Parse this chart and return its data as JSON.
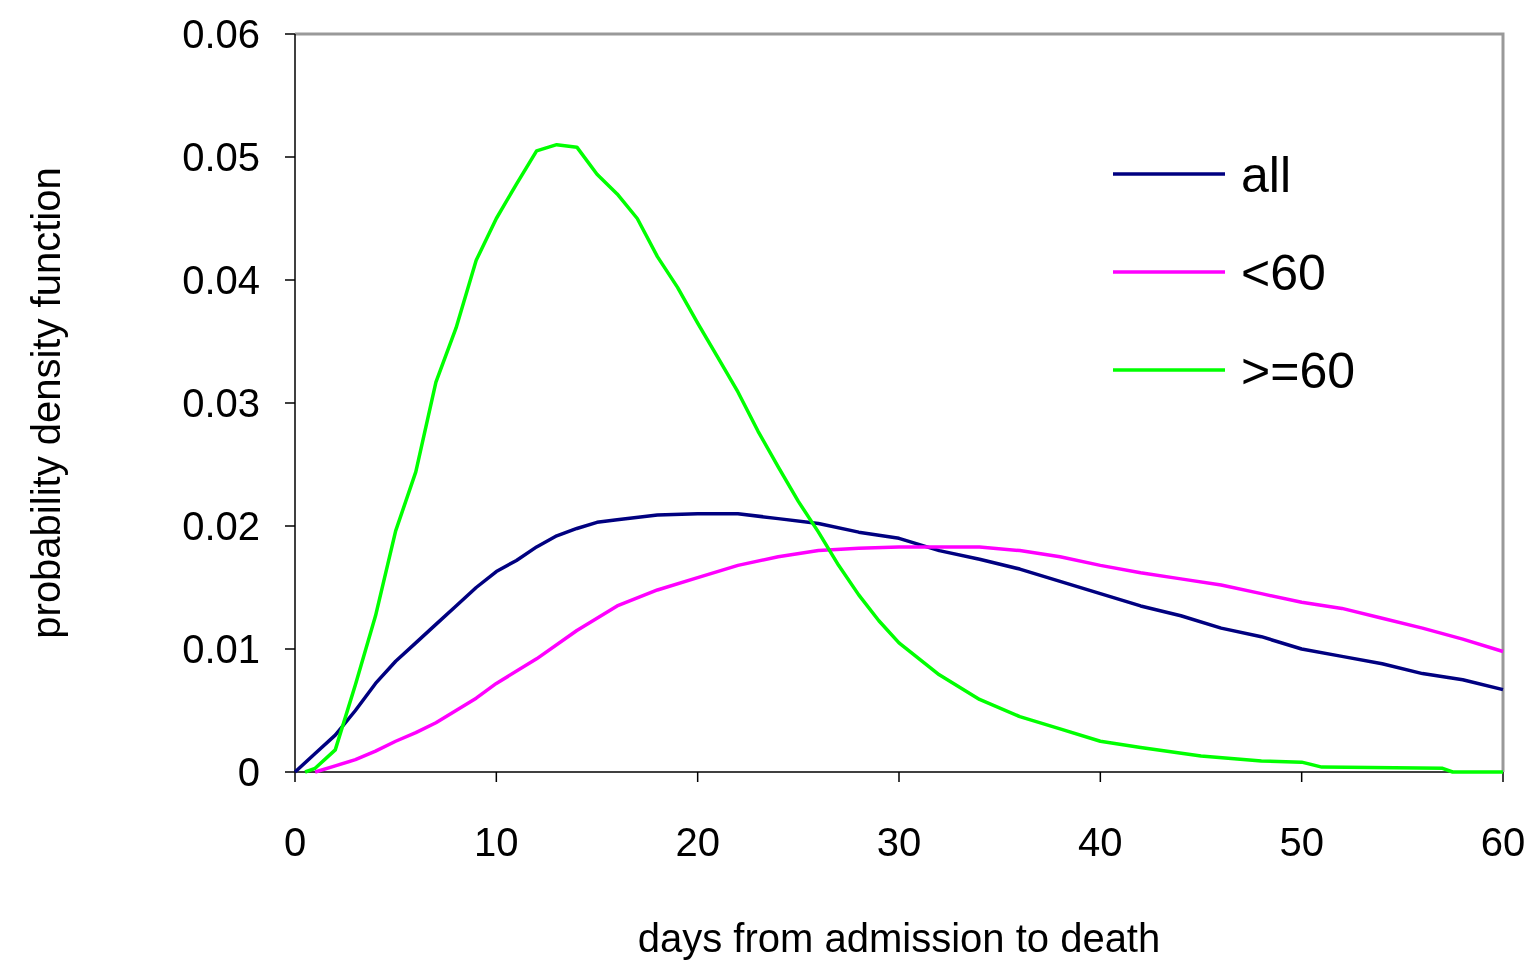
{
  "chart_data": {
    "type": "line",
    "xlabel": "days from admission to death",
    "ylabel": "probability density function",
    "xlim": [
      0,
      60
    ],
    "ylim": [
      0,
      0.06
    ],
    "xticks": [
      0,
      10,
      20,
      30,
      40,
      50,
      60
    ],
    "yticks": [
      0,
      0.01,
      0.02,
      0.03,
      0.04,
      0.05,
      0.06
    ],
    "grid": false,
    "legend": "top right",
    "marker": "none",
    "line_style": "solid",
    "series": [
      {
        "name": "all",
        "color": "#000080",
        "x": [
          0,
          1,
          2,
          3,
          4,
          5,
          6,
          7,
          8,
          9,
          10,
          11,
          12,
          13,
          14,
          15,
          16,
          18,
          20,
          22,
          24,
          26,
          28,
          30,
          32,
          34,
          36,
          38,
          40,
          42,
          44,
          46,
          48,
          50,
          52,
          54,
          56,
          58,
          60
        ],
        "values": [
          0,
          0.0015,
          0.003,
          0.005,
          0.0072,
          0.009,
          0.0105,
          0.012,
          0.0135,
          0.015,
          0.0163,
          0.0172,
          0.0183,
          0.0192,
          0.0198,
          0.0203,
          0.0205,
          0.0209,
          0.021,
          0.021,
          0.0206,
          0.0202,
          0.0195,
          0.019,
          0.018,
          0.0173,
          0.0165,
          0.0155,
          0.0145,
          0.0135,
          0.0127,
          0.0117,
          0.011,
          0.01,
          0.0094,
          0.0088,
          0.008,
          0.0075,
          0.0067
        ]
      },
      {
        "name": "<60",
        "color": "#ff00ff",
        "x": [
          1,
          2,
          3,
          4,
          5,
          6,
          7,
          8,
          9,
          10,
          12,
          14,
          16,
          18,
          20,
          22,
          24,
          26,
          28,
          30,
          34,
          36,
          38,
          40,
          42,
          44,
          46,
          48,
          50,
          52,
          54,
          56,
          58,
          60
        ],
        "values": [
          0,
          0.0005,
          0.001,
          0.0017,
          0.0025,
          0.0032,
          0.004,
          0.005,
          0.006,
          0.0072,
          0.0092,
          0.0115,
          0.0135,
          0.0148,
          0.0158,
          0.0168,
          0.0175,
          0.018,
          0.0182,
          0.0183,
          0.0183,
          0.018,
          0.0175,
          0.0168,
          0.0162,
          0.0157,
          0.0152,
          0.0145,
          0.0138,
          0.0133,
          0.0125,
          0.0117,
          0.0108,
          0.0098
        ]
      },
      {
        "name": ">=60",
        "color": "#00ff00",
        "x": [
          0.5,
          1,
          2,
          3,
          4,
          5,
          6,
          7,
          8,
          9,
          10,
          11,
          12,
          13,
          14,
          15,
          16,
          17,
          18,
          19,
          20,
          21,
          22,
          23,
          24,
          25,
          26,
          27,
          28,
          29,
          30,
          32,
          34,
          36,
          38,
          40,
          42,
          45,
          48,
          50,
          51,
          57,
          57.5,
          60
        ],
        "values": [
          0,
          0.0003,
          0.0018,
          0.0071,
          0.0127,
          0.0196,
          0.0244,
          0.0317,
          0.0361,
          0.0416,
          0.045,
          0.0478,
          0.0505,
          0.051,
          0.0508,
          0.0486,
          0.047,
          0.045,
          0.0419,
          0.0394,
          0.0365,
          0.0337,
          0.0309,
          0.0277,
          0.0248,
          0.022,
          0.0195,
          0.0168,
          0.0144,
          0.0123,
          0.0105,
          0.0079,
          0.0059,
          0.0045,
          0.0035,
          0.0025,
          0.002,
          0.0013,
          0.0009,
          0.0008,
          0.0004,
          0.0003,
          0,
          0
        ]
      }
    ]
  }
}
